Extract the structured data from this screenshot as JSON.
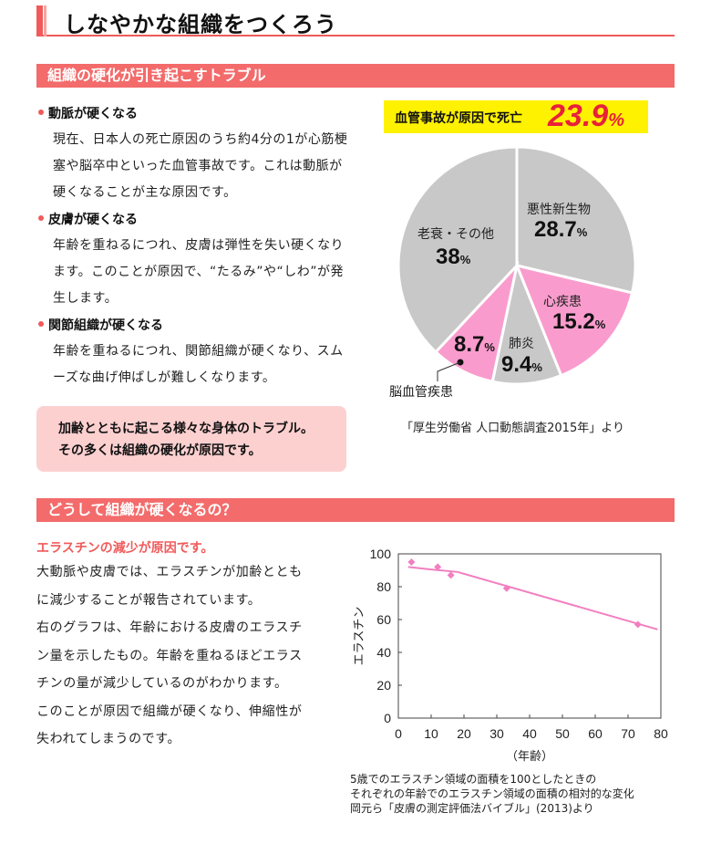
{
  "page_title": "しなやかな組織をつくろう",
  "section1": {
    "header": "組織の硬化が引き起こすトラブル",
    "items": [
      {
        "heading": "動脈が硬くなる",
        "body": "現在、日本人の死亡原因のうち約4分の1が心筋梗塞や脳卒中といった血管事故です。これは動脈が硬くなることが主な原因です。"
      },
      {
        "heading": "皮膚が硬くなる",
        "body": "年齢を重ねるにつれ、皮膚は弾性を失い硬くなり ます。このことが原因で、“たるみ”や“しわ”が発生します。"
      },
      {
        "heading": "関節組織が硬くなる",
        "body": "年齢を重ねるにつれ、関節組織が硬くなり、スムーズな曲げ伸ばしが難しくなります。"
      }
    ],
    "note_line1": "加齢とともに起こる様々な身体のトラブル。",
    "note_line2": "その多くは組織の硬化が原因です。",
    "death_banner_label": "血管事故が原因で死亡",
    "death_banner_value": "23.9",
    "death_banner_unit": "%",
    "pie_source": "「厚生労働省 人口動態調査2015年」より"
  },
  "section2": {
    "header": "どうして組織が硬くなるの？",
    "subheading": "エラスチンの減少が原因です。",
    "paragraphs": [
      "大動脈や皮膚では、エラスチンが加齢とともに減少することが報告されています。",
      "右のグラフは、年齢における皮膚のエラスチン量を示したもの。年齢を重ねるほどエラスチンの量が減少しているのがわかります。",
      "このことが原因で組織が硬くなり、伸縮性が失われてしまうのです。"
    ],
    "chart_note1": "5歳でのエラスチン領域の面積を100としたときの",
    "chart_note2": "それぞれの年齢でのエラスチン領域の面積の相対的な変化",
    "chart_note3": "岡元ら「皮膚の測定評価法バイブル」(2013)より"
  },
  "colors": {
    "accent": "#f36b6b",
    "pie_gray": "#c8c8c8",
    "pie_pink": "#f99ccd",
    "line_pink": "#f27fc0",
    "highlight_yellow": "#fff200",
    "highlight_red": "#e8203a"
  },
  "chart_data": [
    {
      "type": "pie",
      "title": "",
      "slices": [
        {
          "label": "悪性新生物",
          "value": 28.7,
          "value_label": "28.7",
          "unit": "%",
          "color": "#c8c8c8"
        },
        {
          "label": "心疾患",
          "value": 15.2,
          "value_label": "15.2",
          "unit": "%",
          "color": "#f99ccd"
        },
        {
          "label": "肺炎",
          "value": 9.4,
          "value_label": "9.4",
          "unit": "%",
          "color": "#c8c8c8"
        },
        {
          "label": "脳血管疾患",
          "value": 8.7,
          "value_label": "8.7",
          "unit": "%",
          "color": "#f99ccd"
        },
        {
          "label": "老衰・その他",
          "value": 38,
          "value_label": "38",
          "unit": "%",
          "color": "#c8c8c8"
        }
      ]
    },
    {
      "type": "scatter",
      "title": "",
      "xlabel": "（年齢）",
      "ylabel": "エラスチン",
      "xlim": [
        0,
        80
      ],
      "ylim": [
        0,
        100
      ],
      "xticks": [
        0,
        10,
        20,
        30,
        40,
        50,
        60,
        70,
        80
      ],
      "yticks": [
        0,
        20,
        40,
        60,
        80,
        100
      ],
      "points": [
        {
          "x": 4,
          "y": 95
        },
        {
          "x": 12,
          "y": 92
        },
        {
          "x": 16,
          "y": 87
        },
        {
          "x": 33,
          "y": 79
        },
        {
          "x": 73,
          "y": 57
        }
      ],
      "trend": [
        {
          "x": 3,
          "y": 92
        },
        {
          "x": 10,
          "y": 90.5
        },
        {
          "x": 18,
          "y": 89
        },
        {
          "x": 79,
          "y": 54
        }
      ]
    }
  ]
}
